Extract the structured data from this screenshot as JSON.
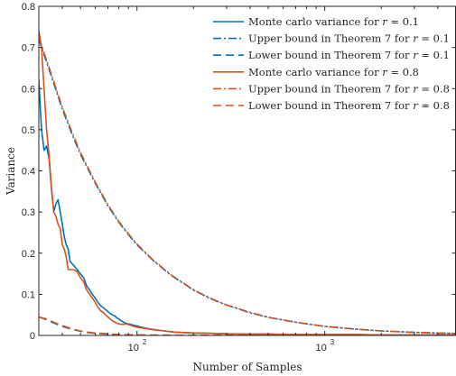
{
  "chart_data": {
    "type": "line",
    "xlabel": "Number of Samples",
    "ylabel": "Variance",
    "xscale": "log",
    "xlim": [
      30,
      5000
    ],
    "ylim": [
      0,
      0.8
    ],
    "grid": false,
    "legend_position": "top-right",
    "y_ticks": [
      "0",
      "0.1",
      "0.2",
      "0.3",
      "0.4",
      "0.5",
      "0.6",
      "0.7",
      "0.8"
    ],
    "x_ticks": [
      {
        "base": "10",
        "exp": "2",
        "value": 100
      },
      {
        "base": "10",
        "exp": "3",
        "value": 1000
      }
    ],
    "colors": {
      "blue": "#0072BD",
      "orange": "#D95319",
      "axis": "#262626"
    },
    "series": [
      {
        "name": "Monte carlo variance for r = 0.1",
        "color": "#0072BD",
        "dash": "solid",
        "x": [
          30,
          31,
          32,
          33,
          34,
          35,
          36,
          37,
          38,
          39,
          40,
          41,
          42,
          43,
          44,
          46,
          48,
          50,
          52,
          54,
          56,
          58,
          60,
          62,
          64,
          66,
          68,
          70,
          72,
          74,
          76,
          78,
          80,
          82,
          85,
          88,
          92,
          96,
          100,
          110,
          120,
          140,
          160,
          200,
          250,
          300,
          400,
          500,
          700,
          1000,
          1500,
          2000,
          3000,
          5000
        ],
        "y": [
          0.62,
          0.5,
          0.45,
          0.46,
          0.43,
          0.36,
          0.3,
          0.32,
          0.33,
          0.3,
          0.27,
          0.24,
          0.22,
          0.21,
          0.18,
          0.17,
          0.16,
          0.15,
          0.14,
          0.12,
          0.11,
          0.1,
          0.09,
          0.08,
          0.072,
          0.068,
          0.063,
          0.058,
          0.053,
          0.05,
          0.048,
          0.043,
          0.04,
          0.036,
          0.032,
          0.029,
          0.027,
          0.025,
          0.023,
          0.018,
          0.015,
          0.011,
          0.008,
          0.006,
          0.005,
          0.004,
          0.003,
          0.003,
          0.002,
          0.002,
          0.002,
          0.001,
          0.001,
          0.001
        ]
      },
      {
        "name": "Upper bound in Theorem 7 for r = 0.1",
        "color": "#0072BD",
        "dash": "dashdot",
        "x": [
          30,
          35,
          40,
          45,
          50,
          60,
          70,
          80,
          90,
          100,
          120,
          150,
          200,
          250,
          300,
          400,
          500,
          700,
          1000,
          1500,
          2000,
          3000,
          5000
        ],
        "y": [
          0.72,
          0.63,
          0.55,
          0.49,
          0.44,
          0.37,
          0.315,
          0.275,
          0.245,
          0.22,
          0.185,
          0.148,
          0.11,
          0.088,
          0.074,
          0.055,
          0.044,
          0.032,
          0.022,
          0.015,
          0.011,
          0.0075,
          0.0045
        ]
      },
      {
        "name": "Lower bound in Theorem 7 for r = 0.1",
        "color": "#0072BD",
        "dash": "dashed",
        "x": [
          30,
          33,
          36,
          40,
          45,
          50,
          55,
          60,
          70,
          80,
          100,
          150,
          200,
          500,
          1000,
          5000
        ],
        "y": [
          0.045,
          0.038,
          0.03,
          0.022,
          0.015,
          0.01,
          0.007,
          0.005,
          0.003,
          0.002,
          0.001,
          0.0005,
          0.0003,
          0.0001,
          0.0,
          0.0
        ]
      },
      {
        "name": "Monte carlo variance for r = 0.8",
        "color": "#D95319",
        "dash": "solid",
        "x": [
          30,
          31,
          32,
          33,
          34,
          35,
          36,
          37,
          38,
          39,
          40,
          41,
          42,
          43,
          44,
          46,
          48,
          50,
          52,
          54,
          56,
          58,
          60,
          62,
          64,
          66,
          68,
          70,
          72,
          74,
          76,
          78,
          80,
          82,
          85,
          88,
          92,
          96,
          100,
          110,
          120,
          140,
          160,
          200,
          250,
          300,
          400,
          500,
          700,
          1000,
          1500,
          2000,
          3000,
          5000
        ],
        "y": [
          0.74,
          0.7,
          0.6,
          0.5,
          0.44,
          0.36,
          0.3,
          0.29,
          0.27,
          0.26,
          0.22,
          0.21,
          0.19,
          0.16,
          0.16,
          0.16,
          0.155,
          0.14,
          0.13,
          0.11,
          0.1,
          0.09,
          0.08,
          0.068,
          0.06,
          0.056,
          0.05,
          0.045,
          0.04,
          0.035,
          0.033,
          0.03,
          0.028,
          0.027,
          0.027,
          0.028,
          0.025,
          0.022,
          0.02,
          0.017,
          0.014,
          0.011,
          0.008,
          0.006,
          0.005,
          0.004,
          0.003,
          0.003,
          0.002,
          0.002,
          0.002,
          0.001,
          0.001,
          0.001
        ]
      },
      {
        "name": "Upper bound in Theorem 7 for r = 0.8",
        "color": "#D95319",
        "dash": "dashdot",
        "x": [
          30,
          35,
          40,
          45,
          50,
          60,
          70,
          80,
          90,
          100,
          120,
          150,
          200,
          250,
          300,
          400,
          500,
          700,
          1000,
          1500,
          2000,
          3000,
          5000
        ],
        "y": [
          0.725,
          0.635,
          0.555,
          0.495,
          0.445,
          0.372,
          0.318,
          0.277,
          0.247,
          0.222,
          0.186,
          0.149,
          0.111,
          0.089,
          0.074,
          0.056,
          0.044,
          0.032,
          0.022,
          0.015,
          0.011,
          0.0075,
          0.0045
        ]
      },
      {
        "name": "Lower bound in Theorem 7 for r = 0.8",
        "color": "#D95319",
        "dash": "dashed",
        "x": [
          30,
          33,
          36,
          40,
          45,
          50,
          55,
          60,
          70,
          80,
          100,
          150,
          200,
          500,
          1000,
          5000
        ],
        "y": [
          0.045,
          0.04,
          0.032,
          0.024,
          0.016,
          0.011,
          0.008,
          0.006,
          0.004,
          0.002,
          0.001,
          0.0005,
          0.0003,
          0.0001,
          0.0,
          0.0
        ]
      }
    ],
    "legend": [
      {
        "prefix": "Monte carlo variance for ",
        "var": "r",
        "suffix": " = 0.1",
        "color": "#0072BD",
        "dash": "solid"
      },
      {
        "prefix": "Upper bound in Theorem 7 for ",
        "var": "r",
        "suffix": " = 0.1",
        "color": "#0072BD",
        "dash": "dashdot"
      },
      {
        "prefix": "Lower bound in Theorem 7 for ",
        "var": "r",
        "suffix": " = 0.1",
        "color": "#0072BD",
        "dash": "dashed"
      },
      {
        "prefix": "Monte carlo variance for ",
        "var": "r",
        "suffix": " = 0.8",
        "color": "#D95319",
        "dash": "solid"
      },
      {
        "prefix": "Upper bound in Theorem 7 for ",
        "var": "r",
        "suffix": " = 0.8",
        "color": "#D95319",
        "dash": "dashdot"
      },
      {
        "prefix": "Lower bound in Theorem 7 for ",
        "var": "r",
        "suffix": " = 0.8",
        "color": "#D95319",
        "dash": "dashed"
      }
    ]
  }
}
